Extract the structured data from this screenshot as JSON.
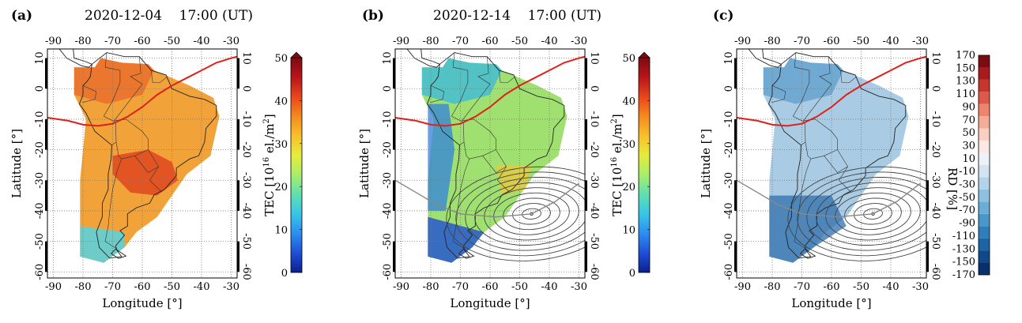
{
  "panels": [
    {
      "letter": "(a)",
      "date": "2020-12-04",
      "time": "17:00 (UT)",
      "quantity": "TEC",
      "colorbar": "tec"
    },
    {
      "letter": "(b)",
      "date": "2020-12-14",
      "time": "17:00 (UT)",
      "quantity": "TEC",
      "colorbar": "tec",
      "eclipse_contours": true
    },
    {
      "letter": "(c)",
      "date": "",
      "time": "",
      "quantity": "RD",
      "colorbar": "rd",
      "eclipse_contours": true
    }
  ],
  "axes": {
    "xlabel": "Longitude [°]",
    "ylabel": "Latitude [°]",
    "lon_ticks": [
      "-90",
      "-80",
      "-70",
      "-60",
      "-50",
      "-40",
      "-30"
    ],
    "lat_ticks_left": [
      "10",
      "0",
      "-10",
      "-20",
      "-30",
      "-40",
      "-50",
      "-60"
    ],
    "lat_ticks_right": [
      "10",
      "0",
      "-10",
      "-20",
      "-30",
      "-40",
      "-50",
      "-60"
    ],
    "lon_range": [
      -92,
      -28
    ],
    "lat_range": [
      -62,
      13
    ]
  },
  "tec_colorbar": {
    "label_main": "TEC [10",
    "label_sup": "16",
    "label_rest": " el./m",
    "label_sup2": "2",
    "label_end": "]",
    "ticks": [
      "50",
      "40",
      "30",
      "20",
      "10",
      "0"
    ],
    "range": [
      0,
      50
    ],
    "colors": [
      "#0b1f8f",
      "#1e4fd6",
      "#2c8ef0",
      "#37c6e8",
      "#5fe0b0",
      "#a8ee6a",
      "#e6ec3a",
      "#f7c02a",
      "#f48a1e",
      "#e8461c",
      "#b8141a",
      "#7a0c10"
    ]
  },
  "rd_colorbar": {
    "label": "RD [%]",
    "ticks": [
      "170",
      "150",
      "130",
      "110",
      "90",
      "70",
      "50",
      "30",
      "10",
      "-10",
      "-30",
      "-50",
      "-70",
      "-90",
      "-110",
      "-130",
      "-150",
      "-170"
    ],
    "range": [
      -170,
      170
    ],
    "colors": [
      "#08306b",
      "#0e4a8a",
      "#1c64a6",
      "#2f7ebc",
      "#4a98c9",
      "#6aaed6",
      "#8ec1df",
      "#b3d3e8",
      "#d3e3f0",
      "#edf2f8",
      "#fbe8e2",
      "#f9cfc2",
      "#f4ab98",
      "#ec8470",
      "#dd5a4a",
      "#c8342e",
      "#a81a1e",
      "#7b0c12"
    ]
  },
  "chart_data": {
    "type": "map",
    "features": [
      "TEC map over South America",
      "magnetic equator line",
      "eclipse obscuration contours"
    ],
    "equator_line_color": "#e0201a",
    "eclipse_center": {
      "lon": -46,
      "lat": -41
    }
  }
}
